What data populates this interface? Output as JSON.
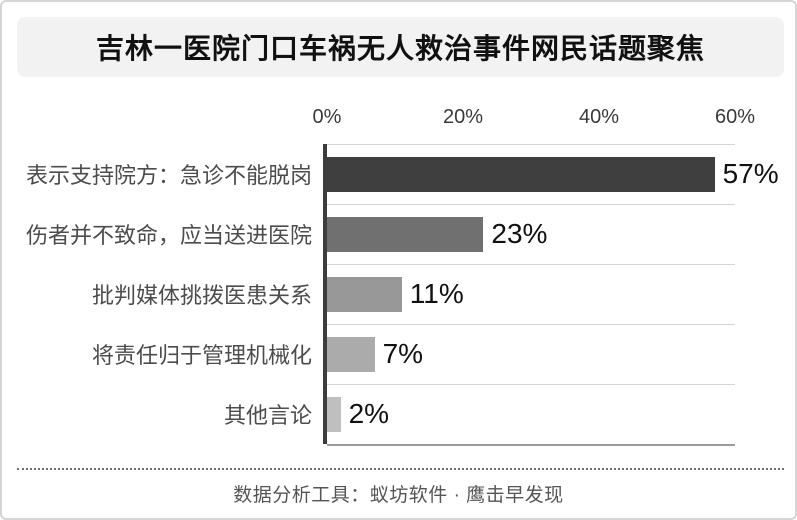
{
  "title": "吉林一医院门口车祸无人救治事件网民话题聚焦",
  "chart_data": {
    "type": "bar",
    "orientation": "horizontal",
    "title": "吉林一医院门口车祸无人救治事件网民话题聚焦",
    "categories": [
      "表示支持院方：急诊不能脱岗",
      "伤者并不致命，应当送进医院",
      "批判媒体挑拨医患关系",
      "将责任归于管理机械化",
      "其他言论"
    ],
    "values": [
      57,
      23,
      11,
      7,
      2
    ],
    "value_labels": [
      "57%",
      "23%",
      "11%",
      "7%",
      "2%"
    ],
    "xtick_labels": [
      "0%",
      "20%",
      "40%",
      "60%"
    ],
    "xtick_values": [
      0,
      20,
      40,
      60
    ],
    "xlim": [
      0,
      60
    ],
    "xlabel": "",
    "ylabel": "",
    "legend": "none",
    "grid": "horizontal-row-separators",
    "axis_color": "#3d3d3d",
    "bar_colors": [
      "#3f3f3f",
      "#707070",
      "#989898",
      "#ababab",
      "#bfbfbf"
    ]
  },
  "footer": {
    "source": "数据分析工具：蚁坊软件 · 鹰击早发现"
  }
}
